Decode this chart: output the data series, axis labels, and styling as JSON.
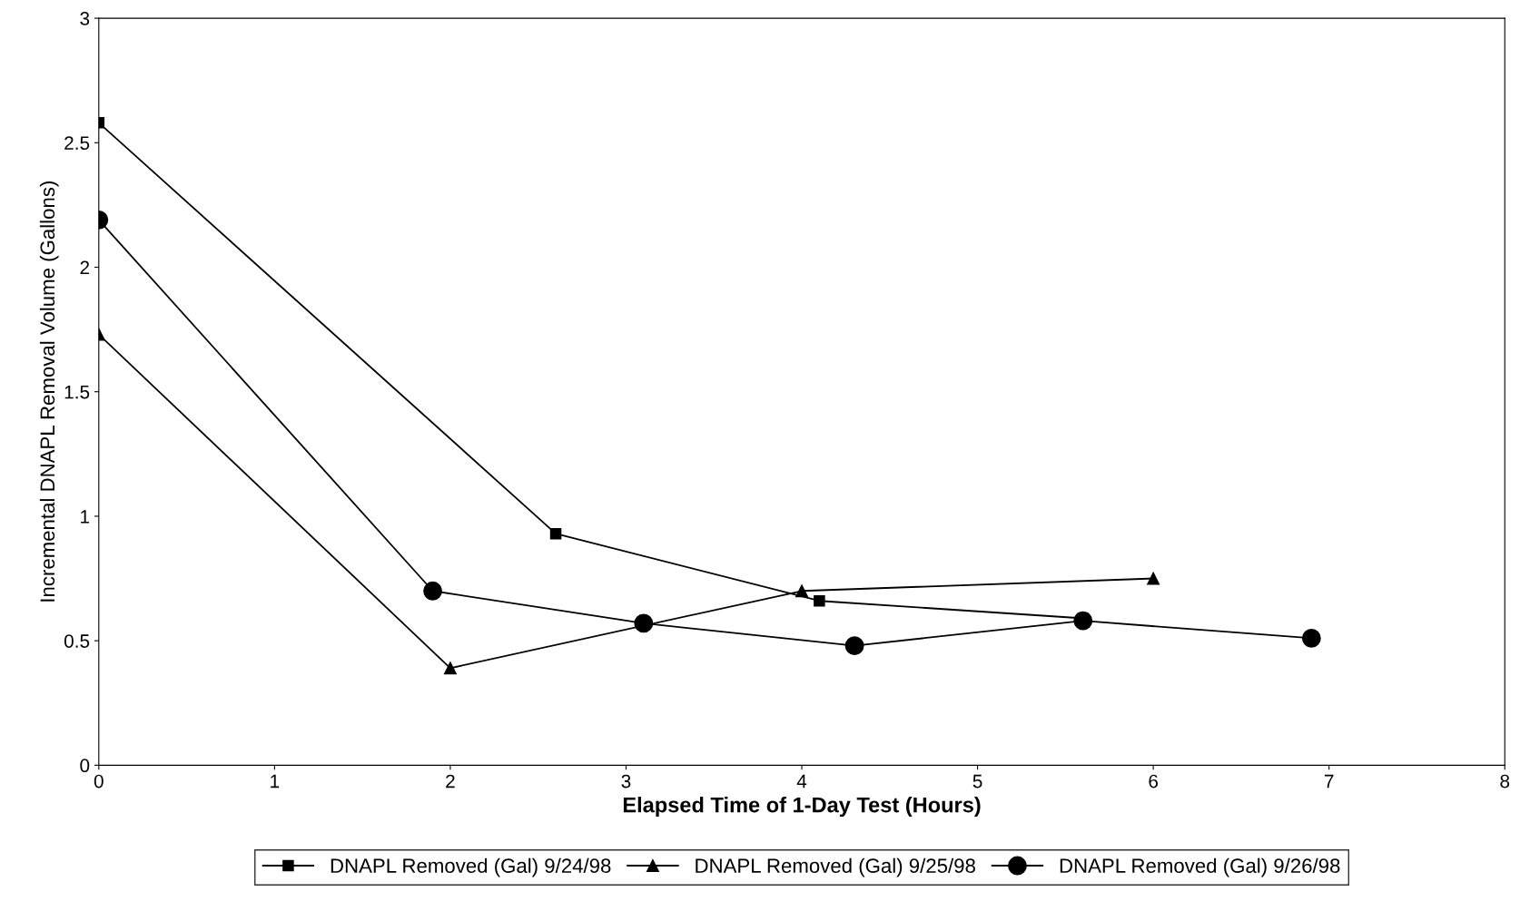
{
  "chart_data": {
    "type": "line",
    "xlabel": "Elapsed Time of 1-Day Test (Hours)",
    "ylabel": "Incremental DNAPL Removal Volume (Gallons)",
    "xlim": [
      0,
      8
    ],
    "xticks": [
      0,
      1,
      2,
      3,
      4,
      5,
      6,
      7,
      8
    ],
    "ylim": [
      0,
      3
    ],
    "yticks": [
      0,
      0.5,
      1,
      1.5,
      2,
      2.5,
      3
    ],
    "grid": false,
    "legend": "bottom",
    "line_style": "solid",
    "series": [
      {
        "name": "DNAPL Removed (Gal) 9/24/98",
        "color": "#000000",
        "marker": "square",
        "x": [
          0,
          2.6,
          4.1,
          5.6
        ],
        "values": [
          2.58,
          0.93,
          0.66,
          0.59
        ]
      },
      {
        "name": "DNAPL Removed (Gal) 9/25/98",
        "color": "#000000",
        "marker": "triangle",
        "x": [
          0,
          2.0,
          4.0,
          6.0
        ],
        "values": [
          1.73,
          0.39,
          0.7,
          0.75
        ]
      },
      {
        "name": "DNAPL Removed (Gal) 9/26/98",
        "color": "#000000",
        "marker": "circle",
        "x": [
          0,
          1.9,
          3.1,
          4.3,
          5.6,
          6.9
        ],
        "values": [
          2.19,
          0.7,
          0.57,
          0.48,
          0.58,
          0.51
        ]
      }
    ]
  }
}
